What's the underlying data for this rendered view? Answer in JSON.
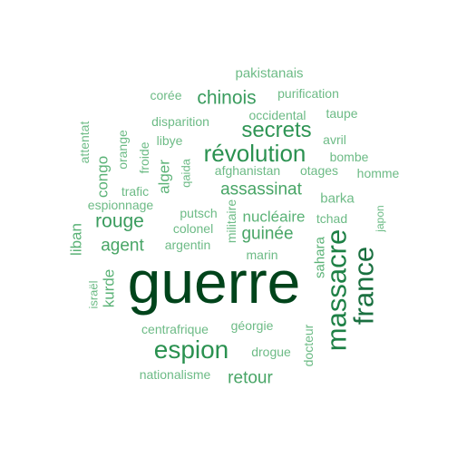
{
  "word_cloud": {
    "words": [
      {
        "text": "guerre",
        "color": "#00441b",
        "size": 5
      },
      {
        "text": "massacre",
        "color": "#1d8045",
        "size": 4
      },
      {
        "text": "france",
        "color": "#1a7040",
        "size": 4
      },
      {
        "text": "espion",
        "color": "#2a9150",
        "size": 3
      },
      {
        "text": "révolution",
        "color": "#2a9150",
        "size": 3
      },
      {
        "text": "secrets",
        "color": "#2f9555",
        "size": 3
      },
      {
        "text": "rouge",
        "color": "#3a9c5e",
        "size": 2
      },
      {
        "text": "chinois",
        "color": "#3a9c5e",
        "size": 2
      },
      {
        "text": "assassinat",
        "color": "#48a566",
        "size": 2
      },
      {
        "text": "agent",
        "color": "#48a566",
        "size": 2
      },
      {
        "text": "guinée",
        "color": "#48a566",
        "size": 2
      },
      {
        "text": "retour",
        "color": "#48a566",
        "size": 2
      },
      {
        "text": "nucléaire",
        "color": "#5ab276",
        "size": 2
      },
      {
        "text": "congo",
        "color": "#5ab276",
        "size": 2
      },
      {
        "text": "alger",
        "color": "#5ab276",
        "size": 2
      },
      {
        "text": "kurde",
        "color": "#5ab276",
        "size": 2
      },
      {
        "text": "liban",
        "color": "#5ab276",
        "size": 2
      },
      {
        "text": "sahara",
        "color": "#5ab276",
        "size": 2
      },
      {
        "text": "pakistanais",
        "color": "#6dbb86",
        "size": 1
      },
      {
        "text": "purification",
        "color": "#6dbb86",
        "size": 1
      },
      {
        "text": "corée",
        "color": "#6dbb86",
        "size": 1
      },
      {
        "text": "occidental",
        "color": "#6dbb86",
        "size": 1
      },
      {
        "text": "taupe",
        "color": "#6dbb86",
        "size": 1
      },
      {
        "text": "disparition",
        "color": "#6dbb86",
        "size": 1
      },
      {
        "text": "attentat",
        "color": "#6dbb86",
        "size": 1
      },
      {
        "text": "orange",
        "color": "#6dbb86",
        "size": 1
      },
      {
        "text": "libye",
        "color": "#6dbb86",
        "size": 1
      },
      {
        "text": "froide",
        "color": "#6dbb86",
        "size": 1
      },
      {
        "text": "avril",
        "color": "#6dbb86",
        "size": 1
      },
      {
        "text": "bombe",
        "color": "#6dbb86",
        "size": 1
      },
      {
        "text": "qaida",
        "color": "#6dbb86",
        "size": 1
      },
      {
        "text": "afghanistan",
        "color": "#6dbb86",
        "size": 1
      },
      {
        "text": "otages",
        "color": "#6dbb86",
        "size": 1
      },
      {
        "text": "homme",
        "color": "#6dbb86",
        "size": 1
      },
      {
        "text": "trafic",
        "color": "#6dbb86",
        "size": 1
      },
      {
        "text": "barka",
        "color": "#6dbb86",
        "size": 1
      },
      {
        "text": "espionnage",
        "color": "#6dbb86",
        "size": 1
      },
      {
        "text": "putsch",
        "color": "#6dbb86",
        "size": 1
      },
      {
        "text": "militaire",
        "color": "#6dbb86",
        "size": 1
      },
      {
        "text": "tchad",
        "color": "#6dbb86",
        "size": 1
      },
      {
        "text": "japon",
        "color": "#6dbb86",
        "size": 1
      },
      {
        "text": "colonel",
        "color": "#6dbb86",
        "size": 1
      },
      {
        "text": "argentin",
        "color": "#6dbb86",
        "size": 1
      },
      {
        "text": "marin",
        "color": "#6dbb86",
        "size": 1
      },
      {
        "text": "israël",
        "color": "#6dbb86",
        "size": 1
      },
      {
        "text": "centrafrique",
        "color": "#6dbb86",
        "size": 1
      },
      {
        "text": "géorgie",
        "color": "#6dbb86",
        "size": 1
      },
      {
        "text": "drogue",
        "color": "#6dbb86",
        "size": 1
      },
      {
        "text": "docteur",
        "color": "#6dbb86",
        "size": 1
      },
      {
        "text": "nationalisme",
        "color": "#6dbb86",
        "size": 1
      }
    ]
  }
}
